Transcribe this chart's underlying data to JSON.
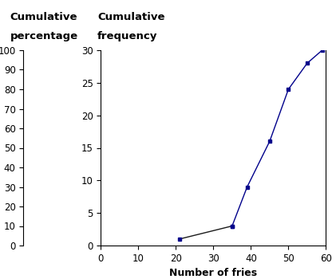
{
  "x": [
    21,
    35,
    39,
    45,
    50,
    55,
    59
  ],
  "cumfreq": [
    1,
    3,
    9,
    16,
    24,
    28,
    30
  ],
  "total": 30,
  "xlim": [
    0,
    60
  ],
  "ylim_freq": [
    0,
    30
  ],
  "ylim_pct": [
    0,
    100
  ],
  "xticks": [
    0,
    10,
    20,
    30,
    40,
    50,
    60
  ],
  "yticks_freq": [
    0,
    5,
    10,
    15,
    20,
    25,
    30
  ],
  "yticks_pct": [
    0,
    10,
    20,
    30,
    40,
    50,
    60,
    70,
    80,
    90,
    100
  ],
  "xlabel": "Number of fries",
  "label_pct_1": "Cumulative",
  "label_pct_2": "percentage",
  "label_freq_1": "Cumulative",
  "label_freq_2": "frequency",
  "line_color_dark": "#1a1a1a",
  "line_color_blue": "#00008B",
  "marker": "s",
  "markersize": 3.5,
  "background_color": "#ffffff",
  "axis_fontsize": 9,
  "tick_fontsize": 8.5,
  "label_fontsize": 9.5
}
